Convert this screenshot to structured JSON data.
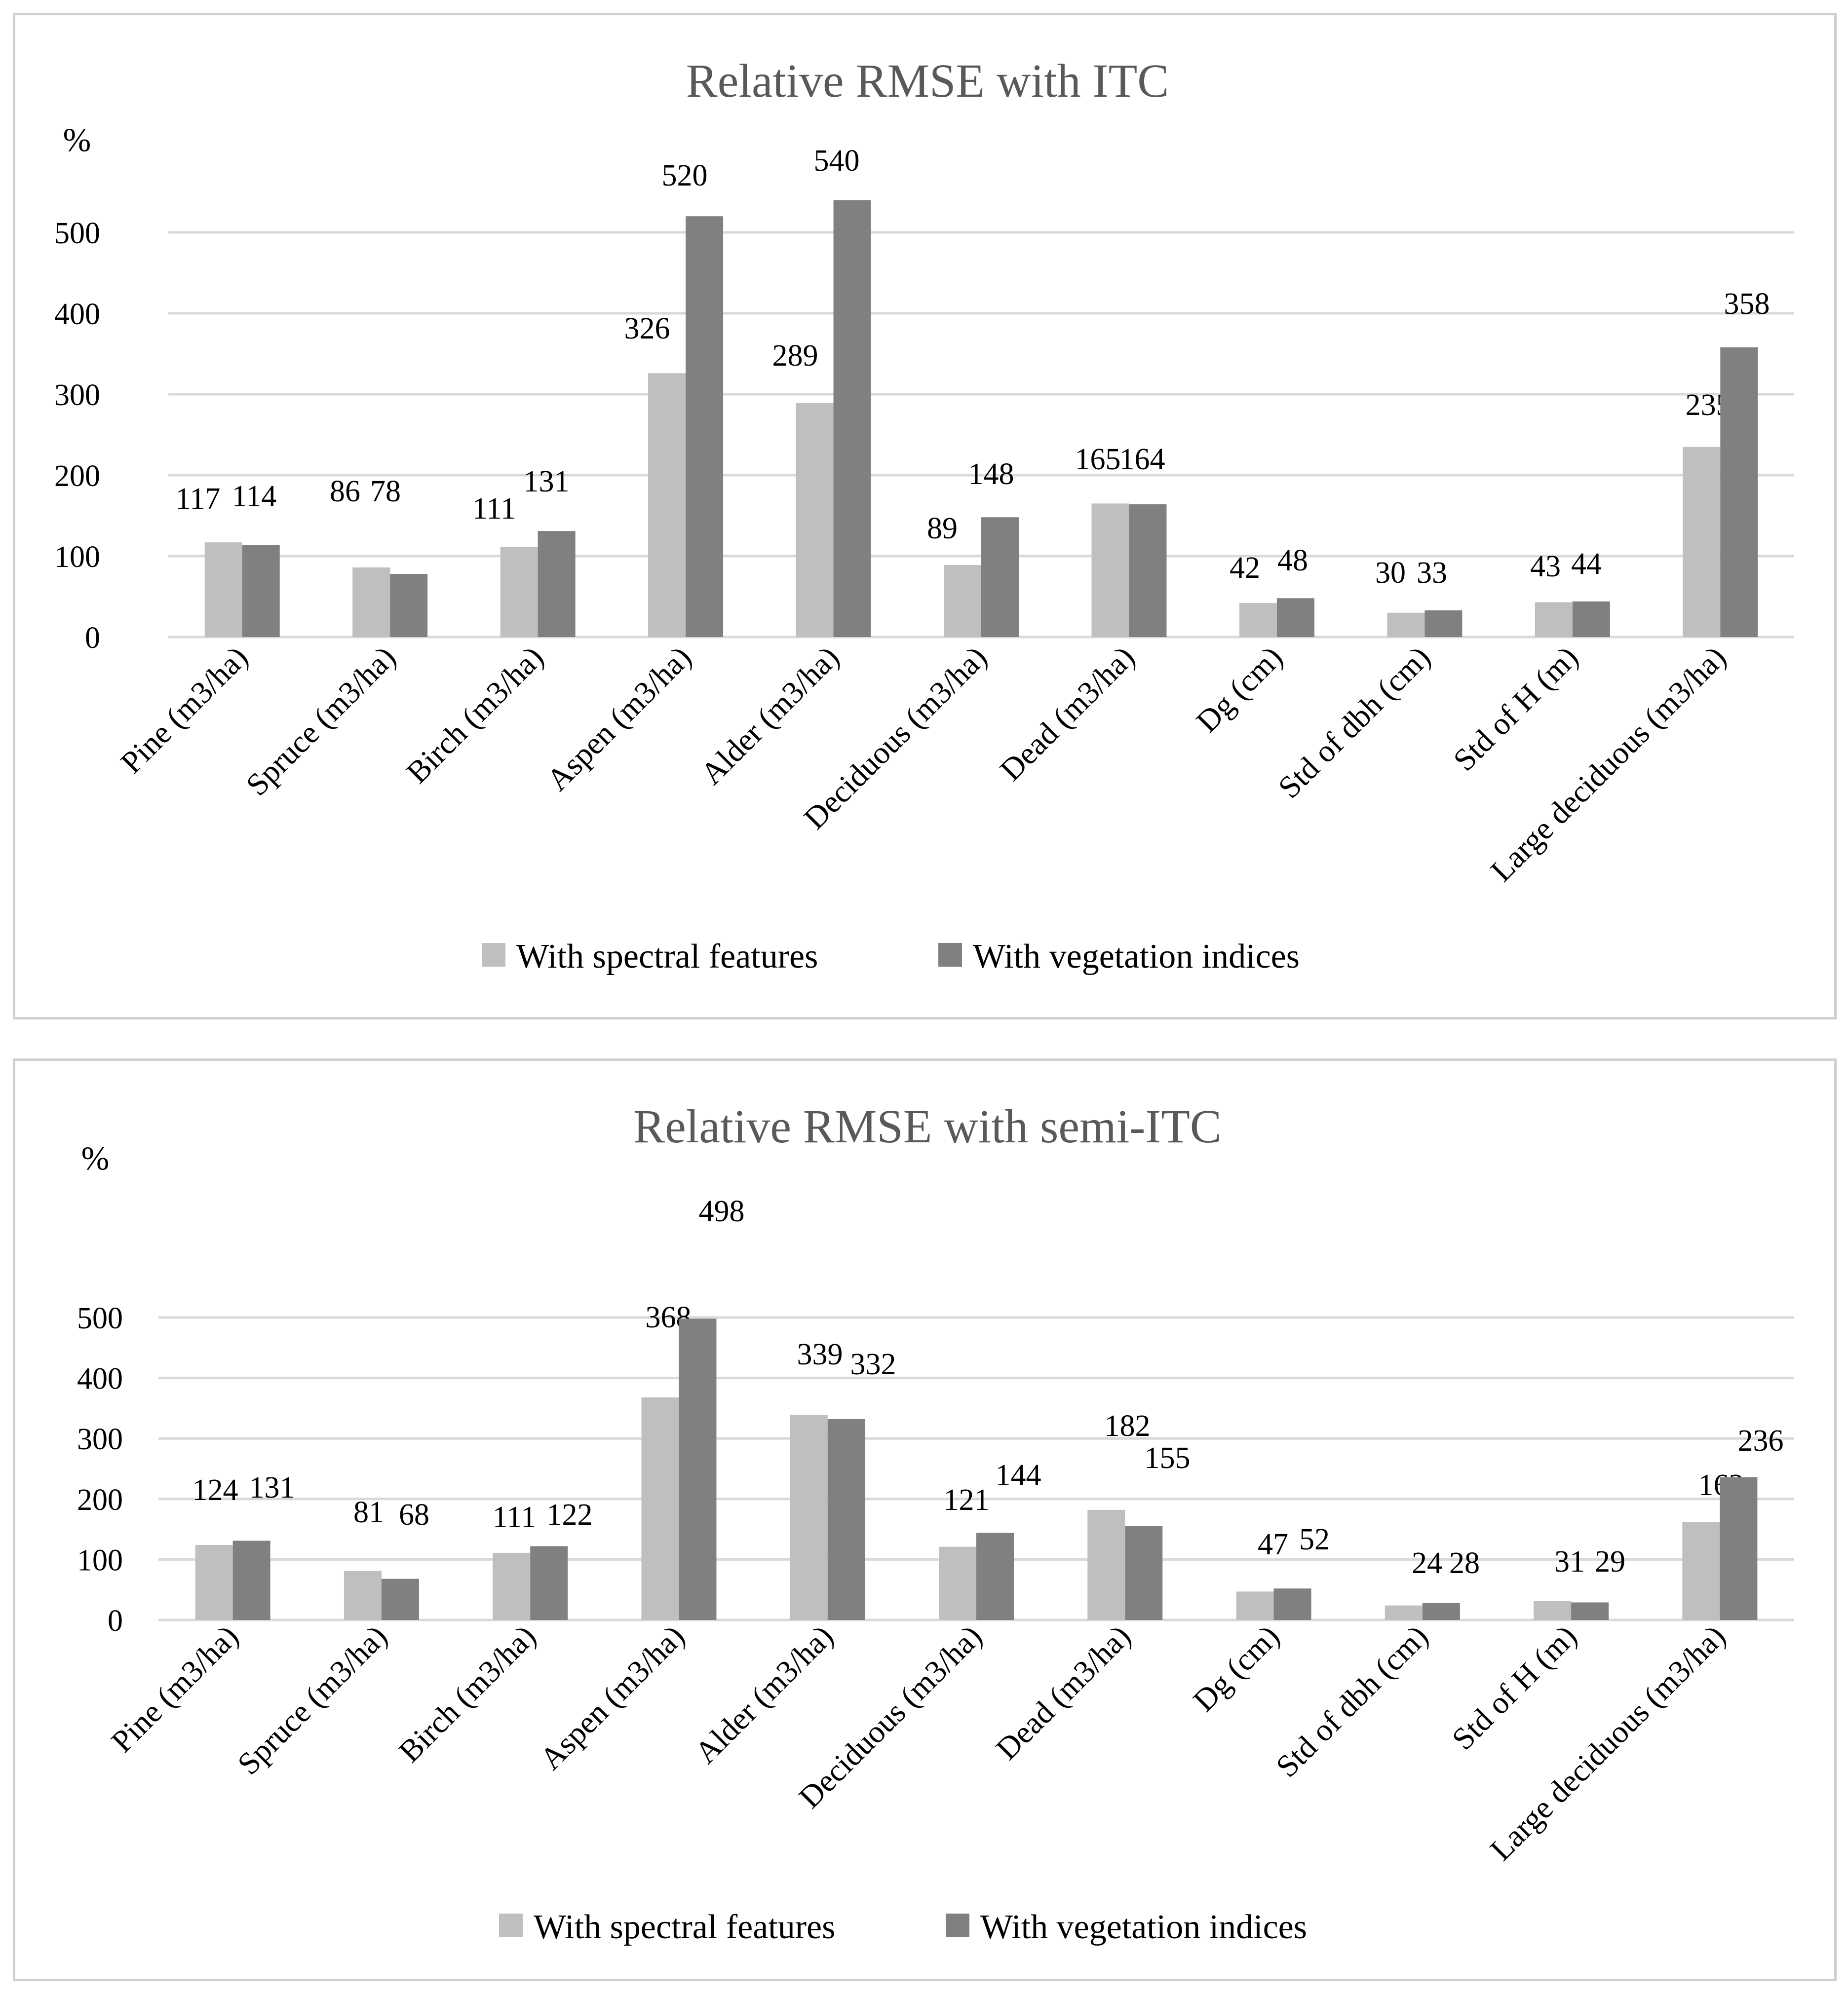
{
  "chart_data": [
    {
      "type": "bar",
      "title": "Relative RMSE with ITC",
      "ylabel": "%",
      "xlabel": "",
      "ylim": [
        0,
        500
      ],
      "yticks": [
        "0",
        "100",
        "200",
        "300",
        "400",
        "500"
      ],
      "grid": true,
      "legend_position": "bottom",
      "categories": [
        "Pine (m3/ha)",
        "Spruce (m3/ha)",
        "Birch (m3/ha)",
        "Aspen (m3/ha)",
        "Alder (m3/ha)",
        "Deciduous (m3/ha)",
        "Dead (m3/ha)",
        "Dg (cm)",
        "Std of dbh (cm)",
        "Std of H (m)",
        "Large deciduous (m3/ha)"
      ],
      "series": [
        {
          "name": "With spectral features",
          "color": "#bfbfbf",
          "values": [
            117,
            86,
            111,
            326,
            289,
            89,
            165,
            42,
            30,
            43,
            235
          ]
        },
        {
          "name": "With vegetation indices",
          "color": "#808080",
          "values": [
            114,
            78,
            131,
            520,
            540,
            148,
            164,
            48,
            33,
            44,
            358
          ]
        }
      ]
    },
    {
      "type": "bar",
      "title": "Relative RMSE with semi-ITC",
      "ylabel": "%",
      "xlabel": "",
      "ylim": [
        0,
        500
      ],
      "yticks": [
        "0",
        "100",
        "200",
        "300",
        "400",
        "500"
      ],
      "grid": true,
      "legend_position": "bottom",
      "categories": [
        "Pine (m3/ha)",
        "Spruce (m3/ha)",
        "Birch (m3/ha)",
        "Aspen (m3/ha)",
        "Alder (m3/ha)",
        "Deciduous (m3/ha)",
        "Dead (m3/ha)",
        "Dg (cm)",
        "Std of dbh (cm)",
        "Std of H (m)",
        "Large deciduous (m3/ha)"
      ],
      "series": [
        {
          "name": "With spectral features",
          "color": "#bfbfbf",
          "values": [
            124,
            81,
            111,
            368,
            339,
            121,
            182,
            47,
            24,
            31,
            162
          ]
        },
        {
          "name": "With vegetation indices",
          "color": "#808080",
          "values": [
            131,
            68,
            122,
            498,
            332,
            144,
            155,
            52,
            28,
            29,
            236
          ]
        }
      ]
    }
  ]
}
